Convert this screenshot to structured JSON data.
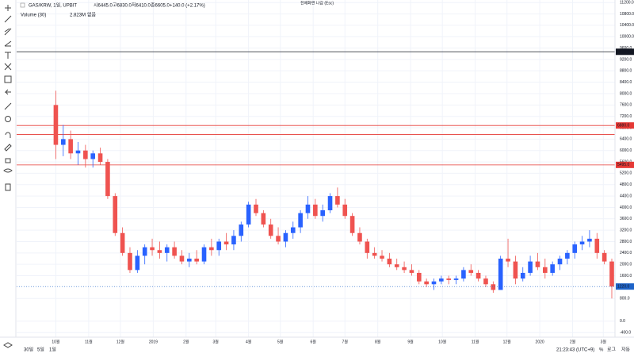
{
  "ui": {
    "symbol": "GAS/KRW, 1일, UPBIT",
    "ohlc": [
      "시6445.0",
      "고6830.0",
      "저6410.0",
      "종6605.0",
      "+140.0 (+2.17%)"
    ],
    "volume_label": "Volume (30)",
    "volume_value": "2.823M",
    "volume_extra": "없음",
    "fullscreen": "전체화면 나감 (Esc)",
    "ranges": [
      "30일",
      "5일",
      "1일"
    ],
    "clock": "21:23:43 (UTC+9)",
    "scale_opts": [
      "%",
      "로그",
      "자동"
    ]
  },
  "chart_data": {
    "type": "candlestick",
    "up_color": "#2962ff",
    "down_color": "#ef5350",
    "grid": true,
    "xlim": [
      -37,
      528
    ],
    "ylim": [
      -560,
      11290
    ],
    "xticks": [
      {
        "value": 0,
        "label": "10월"
      },
      {
        "value": 31,
        "label": "11월"
      },
      {
        "value": 61,
        "label": "12월"
      },
      {
        "value": 92,
        "label": "2019"
      },
      {
        "value": 123,
        "label": "2월"
      },
      {
        "value": 151,
        "label": "3월"
      },
      {
        "value": 182,
        "label": "4월"
      },
      {
        "value": 212,
        "label": "5월"
      },
      {
        "value": 243,
        "label": "6월"
      },
      {
        "value": 273,
        "label": "7월"
      },
      {
        "value": 304,
        "label": "8월"
      },
      {
        "value": 335,
        "label": "9월"
      },
      {
        "value": 365,
        "label": "10월"
      },
      {
        "value": 396,
        "label": "11월"
      },
      {
        "value": 426,
        "label": "12월"
      },
      {
        "value": 457,
        "label": "2020"
      },
      {
        "value": 488,
        "label": "2월"
      },
      {
        "value": 517,
        "label": "3월"
      }
    ],
    "yticks": [
      {
        "value": 11200,
        "label": "11200.0"
      },
      {
        "value": 10800,
        "label": "10800.0"
      },
      {
        "value": 10400,
        "label": "10400.0"
      },
      {
        "value": 10000,
        "label": "10000.0"
      },
      {
        "value": 9600,
        "label": "9600.0"
      },
      {
        "value": 9200,
        "label": "9200.0"
      },
      {
        "value": 8800,
        "label": "8800.0"
      },
      {
        "value": 8400,
        "label": "8400.0"
      },
      {
        "value": 8000,
        "label": "8000.0"
      },
      {
        "value": 7600,
        "label": "7600.0"
      },
      {
        "value": 7200,
        "label": "7200.0"
      },
      {
        "value": 6800,
        "label": "6800.0"
      },
      {
        "value": 6400,
        "label": "6400.0"
      },
      {
        "value": 6000,
        "label": "6000.0"
      },
      {
        "value": 5600,
        "label": "5600.0"
      },
      {
        "value": 5200,
        "label": "5200.0"
      },
      {
        "value": 4800,
        "label": "4800.0"
      },
      {
        "value": 4400,
        "label": "4400.0"
      },
      {
        "value": 4000,
        "label": "4000.0"
      },
      {
        "value": 3600,
        "label": "3600.0"
      },
      {
        "value": 3200,
        "label": "3200.0"
      },
      {
        "value": 2800,
        "label": "2800.0"
      },
      {
        "value": 2400,
        "label": "2400.0"
      },
      {
        "value": 2000,
        "label": "2000.0"
      },
      {
        "value": 1600,
        "label": "1600.0"
      },
      {
        "value": 800,
        "label": "800.0"
      },
      {
        "value": 0,
        "label": "0.0"
      },
      {
        "value": -400,
        "label": "-400.0"
      }
    ],
    "hlines": [
      {
        "value": 9470,
        "label": "9470.0",
        "color": "#131722"
      },
      {
        "value": 6880,
        "label": "6880.0",
        "color": "#e53935"
      },
      {
        "value": 6565,
        "color": "#e53935"
      },
      {
        "value": 5495,
        "label": "5495.0",
        "color": "#e53935"
      }
    ],
    "last_price": {
      "value": 1220,
      "label": "1220.0",
      "color": "#1e63c8"
    },
    "x": [
      0,
      7,
      14,
      21,
      28,
      35,
      42,
      49,
      56,
      63,
      70,
      77,
      84,
      91,
      98,
      105,
      112,
      119,
      126,
      133,
      140,
      147,
      154,
      161,
      168,
      175,
      182,
      189,
      196,
      203,
      210,
      217,
      224,
      231,
      238,
      245,
      252,
      259,
      266,
      273,
      280,
      287,
      294,
      301,
      308,
      315,
      322,
      329,
      336,
      343,
      350,
      357,
      364,
      371,
      378,
      385,
      392,
      399,
      406,
      413,
      420,
      427,
      434,
      441,
      448,
      455,
      462,
      469,
      476,
      483,
      490,
      497,
      504,
      511,
      518,
      525
    ],
    "open": [
      7600,
      6200,
      6400,
      5900,
      6000,
      5700,
      5900,
      5600,
      4400,
      3100,
      2400,
      1800,
      2300,
      2600,
      2500,
      2400,
      2600,
      2300,
      2100,
      2200,
      2100,
      2600,
      2500,
      2800,
      2700,
      3000,
      3400,
      4100,
      3800,
      3400,
      3000,
      2800,
      3100,
      3300,
      3800,
      4100,
      3700,
      3900,
      4400,
      4100,
      3700,
      3100,
      2800,
      2400,
      2300,
      2200,
      2000,
      1900,
      1800,
      1700,
      1400,
      1300,
      1400,
      1500,
      1450,
      1500,
      1800,
      1700,
      1500,
      1300,
      1100,
      2200,
      2100,
      1500,
      1700,
      2100,
      1900,
      1700,
      2000,
      2200,
      2400,
      2700,
      2800,
      2900,
      2400,
      2100
    ],
    "high": [
      8100,
      6900,
      6700,
      6300,
      6200,
      6000,
      6100,
      5700,
      4500,
      3300,
      2600,
      2500,
      2700,
      2900,
      2800,
      2700,
      2800,
      2500,
      2400,
      2500,
      2700,
      2900,
      2900,
      3100,
      3200,
      3500,
      4200,
      4300,
      3900,
      3600,
      3300,
      3200,
      3500,
      3900,
      4400,
      4300,
      4100,
      4500,
      4700,
      4300,
      3800,
      3300,
      2900,
      2600,
      2500,
      2400,
      2200,
      2100,
      2000,
      1800,
      1500,
      1500,
      1600,
      1600,
      1600,
      1900,
      2000,
      1800,
      1600,
      1400,
      2300,
      2900,
      2300,
      1900,
      2300,
      2400,
      2200,
      2100,
      2300,
      2500,
      2800,
      3000,
      3200,
      3100,
      2500,
      2200
    ],
    "low": [
      5700,
      5800,
      5700,
      5500,
      5400,
      5400,
      5500,
      4300,
      3000,
      2300,
      1700,
      1700,
      2000,
      2300,
      2200,
      2100,
      2200,
      2000,
      1900,
      2000,
      2000,
      2300,
      2300,
      2500,
      2500,
      2800,
      3300,
      3700,
      3300,
      2900,
      2700,
      2600,
      2900,
      3100,
      3600,
      3600,
      3500,
      3800,
      4000,
      3600,
      3000,
      2700,
      2200,
      2200,
      2100,
      1900,
      1800,
      1700,
      1600,
      1300,
      1200,
      1100,
      1300,
      1300,
      1300,
      1400,
      1600,
      1400,
      1200,
      1000,
      1100,
      1900,
      1300,
      1400,
      1600,
      1800,
      1500,
      1600,
      1800,
      2000,
      2200,
      2500,
      2600,
      2200,
      2000,
      800
    ],
    "close": [
      6200,
      6400,
      5900,
      6000,
      5700,
      5900,
      5600,
      4400,
      3100,
      2400,
      1800,
      2300,
      2600,
      2500,
      2400,
      2600,
      2300,
      2100,
      2200,
      2100,
      2600,
      2500,
      2800,
      2700,
      3000,
      3400,
      4100,
      3800,
      3400,
      3000,
      2800,
      3100,
      3300,
      3800,
      4100,
      3700,
      3900,
      4400,
      4100,
      3700,
      3100,
      2800,
      2400,
      2300,
      2200,
      2000,
      1900,
      1800,
      1700,
      1400,
      1300,
      1400,
      1500,
      1450,
      1500,
      1800,
      1700,
      1500,
      1300,
      1100,
      2200,
      2100,
      1500,
      1700,
      2100,
      1900,
      1700,
      2000,
      2200,
      2400,
      2700,
      2800,
      2900,
      2400,
      2100,
      1220
    ]
  }
}
